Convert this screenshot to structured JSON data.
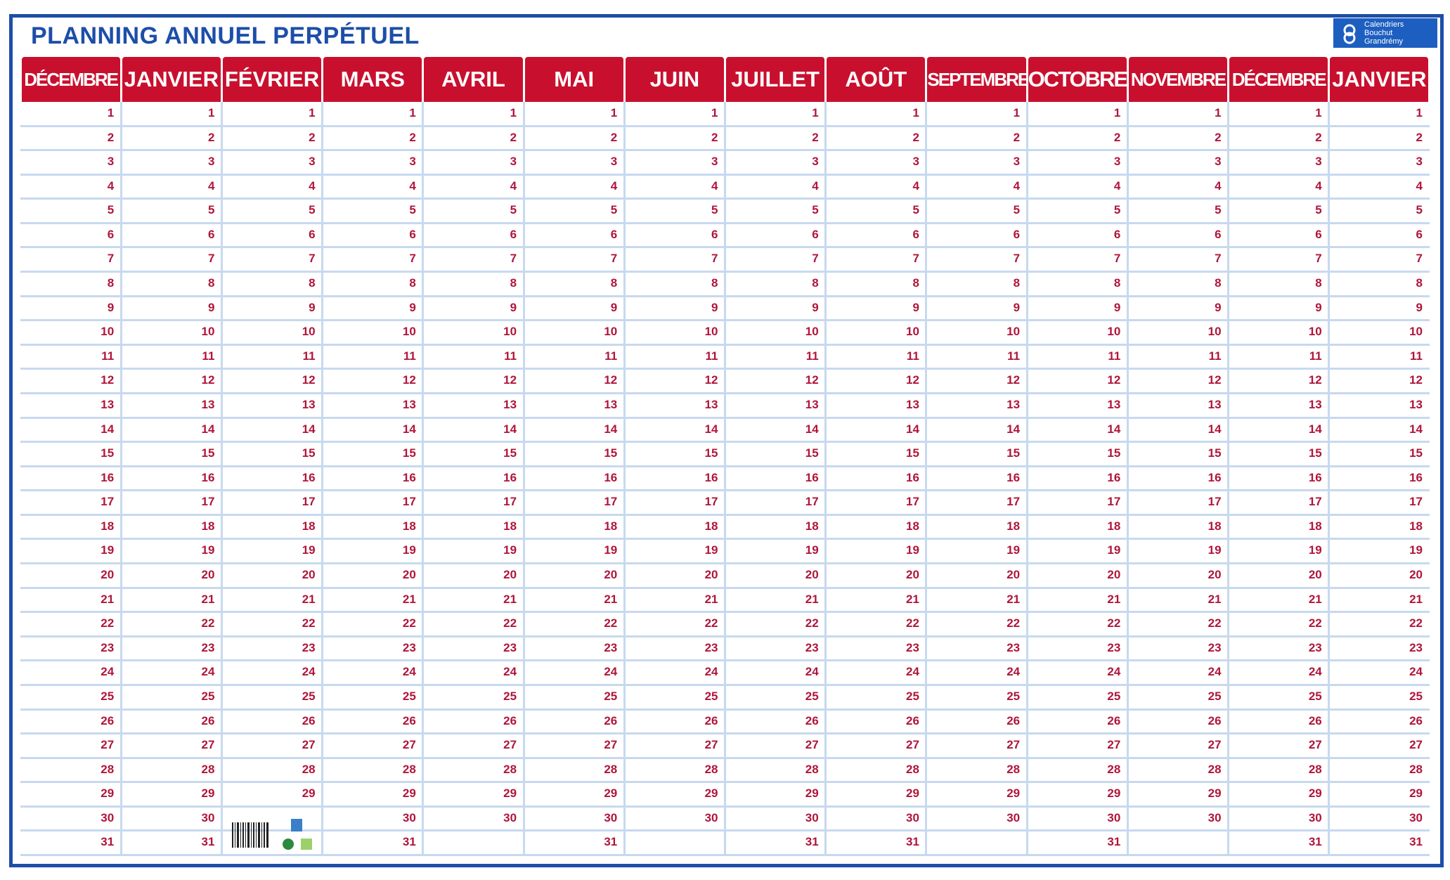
{
  "header": {
    "title": "PLANNING ANNUEL PERPÉTUEL",
    "brand": [
      "Calendriers",
      "Bouchut",
      "Grandrémy"
    ]
  },
  "months": [
    {
      "name": "DÉCEMBRE",
      "days": [
        1,
        2,
        3,
        4,
        5,
        6,
        7,
        8,
        9,
        10,
        11,
        12,
        13,
        14,
        15,
        16,
        17,
        18,
        19,
        20,
        21,
        22,
        23,
        24,
        25,
        26,
        27,
        28,
        29,
        30,
        31
      ]
    },
    {
      "name": "JANVIER",
      "days": [
        1,
        2,
        3,
        4,
        5,
        6,
        7,
        8,
        9,
        10,
        11,
        12,
        13,
        14,
        15,
        16,
        17,
        18,
        19,
        20,
        21,
        22,
        23,
        24,
        25,
        26,
        27,
        28,
        29,
        30,
        31
      ]
    },
    {
      "name": "FÉVRIER",
      "days": [
        1,
        2,
        3,
        4,
        5,
        6,
        7,
        8,
        9,
        10,
        11,
        12,
        13,
        14,
        15,
        16,
        17,
        18,
        19,
        20,
        21,
        22,
        23,
        24,
        25,
        26,
        27,
        28,
        29
      ]
    },
    {
      "name": "MARS",
      "days": [
        1,
        2,
        3,
        4,
        5,
        6,
        7,
        8,
        9,
        10,
        11,
        12,
        13,
        14,
        15,
        16,
        17,
        18,
        19,
        20,
        21,
        22,
        23,
        24,
        25,
        26,
        27,
        28,
        29,
        30,
        31
      ]
    },
    {
      "name": "AVRIL",
      "days": [
        1,
        2,
        3,
        4,
        5,
        6,
        7,
        8,
        9,
        10,
        11,
        12,
        13,
        14,
        15,
        16,
        17,
        18,
        19,
        20,
        21,
        22,
        23,
        24,
        25,
        26,
        27,
        28,
        29,
        30
      ]
    },
    {
      "name": "MAI",
      "days": [
        1,
        2,
        3,
        4,
        5,
        6,
        7,
        8,
        9,
        10,
        11,
        12,
        13,
        14,
        15,
        16,
        17,
        18,
        19,
        20,
        21,
        22,
        23,
        24,
        25,
        26,
        27,
        28,
        29,
        30,
        31
      ]
    },
    {
      "name": "JUIN",
      "days": [
        1,
        2,
        3,
        4,
        5,
        6,
        7,
        8,
        9,
        10,
        11,
        12,
        13,
        14,
        15,
        16,
        17,
        18,
        19,
        20,
        21,
        22,
        23,
        24,
        25,
        26,
        27,
        28,
        29,
        30
      ]
    },
    {
      "name": "JUILLET",
      "days": [
        1,
        2,
        3,
        4,
        5,
        6,
        7,
        8,
        9,
        10,
        11,
        12,
        13,
        14,
        15,
        16,
        17,
        18,
        19,
        20,
        21,
        22,
        23,
        24,
        25,
        26,
        27,
        28,
        29,
        30,
        31
      ]
    },
    {
      "name": "AOÛT",
      "days": [
        1,
        2,
        3,
        4,
        5,
        6,
        7,
        8,
        9,
        10,
        11,
        12,
        13,
        14,
        15,
        16,
        17,
        18,
        19,
        20,
        21,
        22,
        23,
        24,
        25,
        26,
        27,
        28,
        29,
        30,
        31
      ]
    },
    {
      "name": "SEPTEMBRE",
      "days": [
        1,
        2,
        3,
        4,
        5,
        6,
        7,
        8,
        9,
        10,
        11,
        12,
        13,
        14,
        15,
        16,
        17,
        18,
        19,
        20,
        21,
        22,
        23,
        24,
        25,
        26,
        27,
        28,
        29,
        30
      ]
    },
    {
      "name": "OCTOBRE",
      "days": [
        1,
        2,
        3,
        4,
        5,
        6,
        7,
        8,
        9,
        10,
        11,
        12,
        13,
        14,
        15,
        16,
        17,
        18,
        19,
        20,
        21,
        22,
        23,
        24,
        25,
        26,
        27,
        28,
        29,
        30,
        31
      ]
    },
    {
      "name": "NOVEMBRE",
      "days": [
        1,
        2,
        3,
        4,
        5,
        6,
        7,
        8,
        9,
        10,
        11,
        12,
        13,
        14,
        15,
        16,
        17,
        18,
        19,
        20,
        21,
        22,
        23,
        24,
        25,
        26,
        27,
        28,
        29,
        30
      ]
    },
    {
      "name": "DÉCEMBRE",
      "days": [
        1,
        2,
        3,
        4,
        5,
        6,
        7,
        8,
        9,
        10,
        11,
        12,
        13,
        14,
        15,
        16,
        17,
        18,
        19,
        20,
        21,
        22,
        23,
        24,
        25,
        26,
        27,
        28,
        29,
        30,
        31
      ]
    },
    {
      "name": "JANVIER",
      "days": [
        1,
        2,
        3,
        4,
        5,
        6,
        7,
        8,
        9,
        10,
        11,
        12,
        13,
        14,
        15,
        16,
        17,
        18,
        19,
        20,
        21,
        22,
        23,
        24,
        25,
        26,
        27,
        28,
        29,
        30,
        31
      ]
    }
  ]
}
